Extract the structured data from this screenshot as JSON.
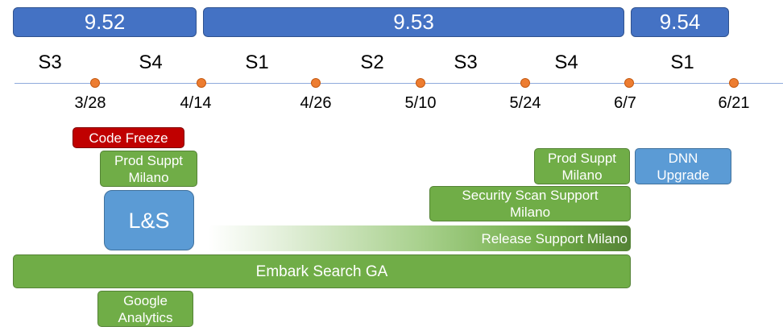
{
  "releases": [
    "9.52",
    "9.53",
    "9.54"
  ],
  "sprints": [
    "S3",
    "S4",
    "S1",
    "S2",
    "S3",
    "S4",
    "S1"
  ],
  "milestones": [
    "3/28",
    "4/14",
    "4/26",
    "5/10",
    "5/24",
    "6/7",
    "6/21"
  ],
  "bars": {
    "code_freeze": "Code Freeze",
    "prod_suppt_1": "Prod Suppt\nMilano",
    "ls": "L&S",
    "google": "Google\nAnalytics",
    "prod_suppt_2": "Prod Suppt\nMilano",
    "dnn": "DNN\nUpgrade",
    "security": "Security Scan Support\nMilano",
    "release_support": "Release Support Milano",
    "embark": "Embark Search GA"
  },
  "colors": {
    "release": "#4472c4",
    "milestone": "#ed7d31",
    "axis": "#8faadc",
    "green": "#70ad47",
    "blue": "#5b9bd5",
    "red": "#c00000"
  }
}
